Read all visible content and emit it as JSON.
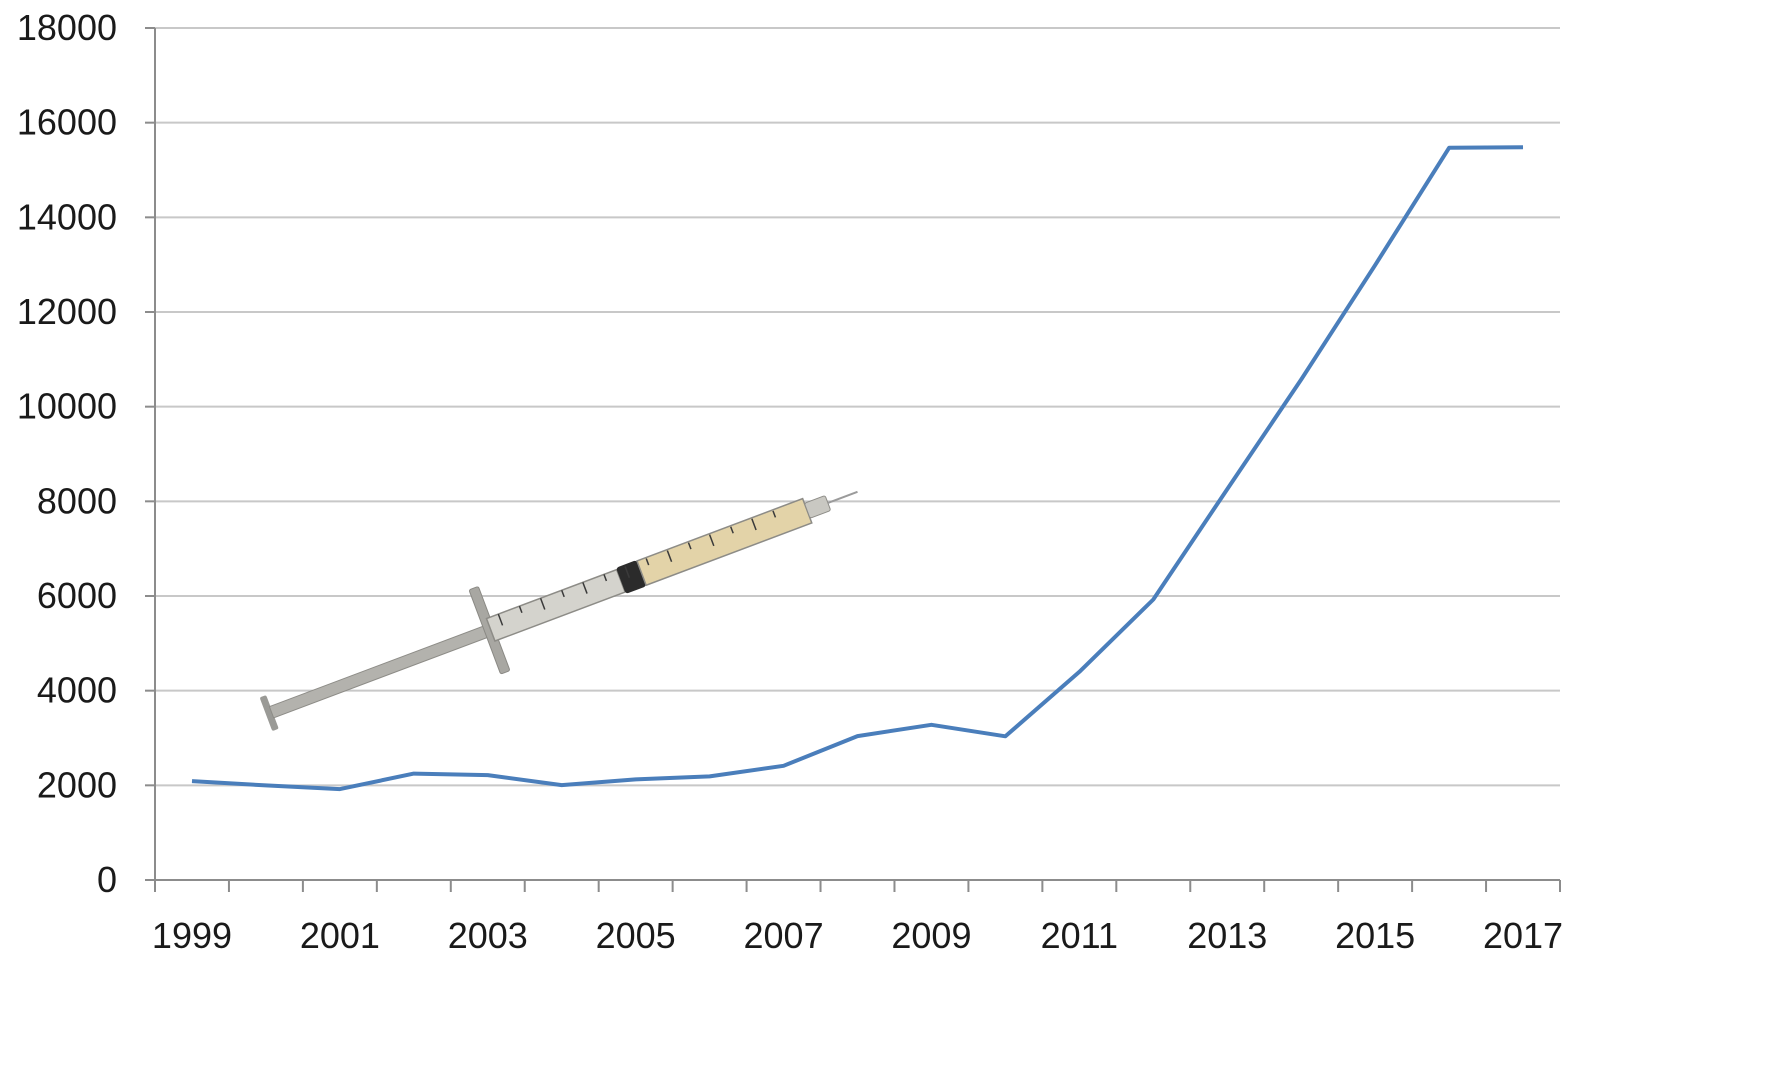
{
  "chart_data": {
    "type": "line",
    "title": "",
    "xlabel": "",
    "ylabel": "",
    "x": [
      1999,
      2000,
      2001,
      2002,
      2003,
      2004,
      2005,
      2006,
      2007,
      2008,
      2009,
      2010,
      2011,
      2012,
      2013,
      2014,
      2015,
      2016,
      2017
    ],
    "x_tick_labels": [
      "1999",
      "2001",
      "2003",
      "2005",
      "2007",
      "2009",
      "2011",
      "2013",
      "2015",
      "2017"
    ],
    "y_tick_labels": [
      "0",
      "2000",
      "4000",
      "6000",
      "8000",
      "10000",
      "12000",
      "14000",
      "16000",
      "18000"
    ],
    "ylim": [
      0,
      18000
    ],
    "grid": "horizontal",
    "legend": "none",
    "series": [
      {
        "values": [
          2089,
          1999,
          1920,
          2248,
          2216,
          2005,
          2125,
          2188,
          2413,
          3041,
          3278,
          3036,
          4397,
          5925,
          8257,
          10574,
          12989,
          15469,
          15482
        ],
        "color": "#4a7ebb"
      }
    ],
    "annotations": [
      {
        "kind": "image",
        "icon": "syringe-icon",
        "from": [
          2000,
          3500
        ],
        "to": [
          2008,
          8200
        ]
      }
    ]
  }
}
